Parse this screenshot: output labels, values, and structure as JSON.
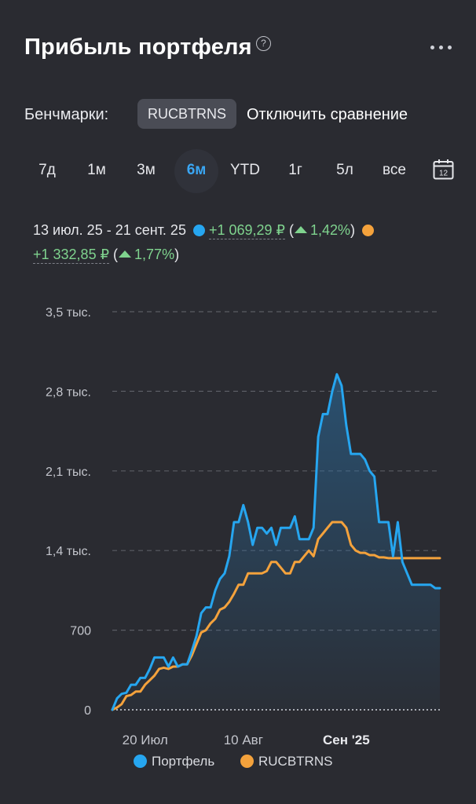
{
  "header": {
    "title": "Прибыль портфеля",
    "help": "?"
  },
  "benchmarks": {
    "label": "Бенчмарки:",
    "selected": "RUCBTRNS",
    "disable": "Отключить сравнение"
  },
  "ranges": [
    "7д",
    "1м",
    "3м",
    "6м",
    "YTD",
    "1г",
    "5л",
    "все"
  ],
  "active_range": "6м",
  "calendar": {
    "day": "12"
  },
  "stats": {
    "period": "13 июл. 25 - 21 сент. 25",
    "portfolio_value": "+1 069,29 ₽",
    "portfolio_pct": "1,42%",
    "bench_value": "+1 332,85 ₽",
    "bench_pct": "1,77%"
  },
  "colors": {
    "portfolio": "#26a6f0",
    "benchmark": "#f4a23c",
    "positive": "#7fd38e"
  },
  "chart_data": {
    "type": "line",
    "yticks": [
      "0",
      "700",
      "1,4 тыс.",
      "2,1 тыс.",
      "2,8 тыс.",
      "3,5 тыс."
    ],
    "ylim": [
      0,
      3500
    ],
    "x_start": "2025-07-13",
    "x_end": "2025-09-21",
    "xticks": [
      {
        "label": "20 Июл",
        "date": "2025-07-20",
        "bold": false
      },
      {
        "label": "10 Авг",
        "date": "2025-08-10",
        "bold": false
      },
      {
        "label": "Сен '25",
        "date": "2025-09-01",
        "bold": true
      }
    ],
    "series": [
      {
        "name": "Портфель",
        "x": [
          "2025-07-13",
          "2025-07-14",
          "2025-07-15",
          "2025-07-16",
          "2025-07-17",
          "2025-07-18",
          "2025-07-19",
          "2025-07-20",
          "2025-07-21",
          "2025-07-22",
          "2025-07-23",
          "2025-07-24",
          "2025-07-25",
          "2025-07-26",
          "2025-07-27",
          "2025-07-28",
          "2025-07-29",
          "2025-07-30",
          "2025-07-31",
          "2025-08-01",
          "2025-08-02",
          "2025-08-03",
          "2025-08-04",
          "2025-08-05",
          "2025-08-06",
          "2025-08-07",
          "2025-08-08",
          "2025-08-09",
          "2025-08-10",
          "2025-08-11",
          "2025-08-12",
          "2025-08-13",
          "2025-08-14",
          "2025-08-15",
          "2025-08-16",
          "2025-08-17",
          "2025-08-18",
          "2025-08-19",
          "2025-08-20",
          "2025-08-21",
          "2025-08-22",
          "2025-08-23",
          "2025-08-24",
          "2025-08-25",
          "2025-08-26",
          "2025-08-27",
          "2025-08-28",
          "2025-08-29",
          "2025-08-30",
          "2025-08-31",
          "2025-09-01",
          "2025-09-02",
          "2025-09-03",
          "2025-09-04",
          "2025-09-05",
          "2025-09-06",
          "2025-09-07",
          "2025-09-08",
          "2025-09-09",
          "2025-09-10",
          "2025-09-11",
          "2025-09-12",
          "2025-09-13",
          "2025-09-14",
          "2025-09-15",
          "2025-09-16",
          "2025-09-17",
          "2025-09-18",
          "2025-09-19",
          "2025-09-20",
          "2025-09-21"
        ],
        "values": [
          0,
          100,
          140,
          150,
          220,
          220,
          280,
          280,
          360,
          460,
          460,
          460,
          380,
          460,
          380,
          400,
          400,
          520,
          650,
          850,
          900,
          900,
          1050,
          1150,
          1200,
          1350,
          1650,
          1650,
          1800,
          1650,
          1450,
          1600,
          1600,
          1550,
          1600,
          1450,
          1600,
          1600,
          1600,
          1700,
          1500,
          1500,
          1500,
          1600,
          2400,
          2600,
          2600,
          2800,
          2950,
          2850,
          2500,
          2250,
          2250,
          2250,
          2200,
          2100,
          2050,
          1650,
          1650,
          1650,
          1350,
          1650,
          1300,
          1200,
          1100,
          1100,
          1100,
          1100,
          1100,
          1069,
          1069
        ]
      },
      {
        "name": "RUCBTRNS",
        "x": [
          "2025-07-13",
          "2025-07-14",
          "2025-07-15",
          "2025-07-16",
          "2025-07-17",
          "2025-07-18",
          "2025-07-19",
          "2025-07-20",
          "2025-07-21",
          "2025-07-22",
          "2025-07-23",
          "2025-07-24",
          "2025-07-25",
          "2025-07-26",
          "2025-07-27",
          "2025-07-28",
          "2025-07-29",
          "2025-07-30",
          "2025-07-31",
          "2025-08-01",
          "2025-08-02",
          "2025-08-03",
          "2025-08-04",
          "2025-08-05",
          "2025-08-06",
          "2025-08-07",
          "2025-08-08",
          "2025-08-09",
          "2025-08-10",
          "2025-08-11",
          "2025-08-12",
          "2025-08-13",
          "2025-08-14",
          "2025-08-15",
          "2025-08-16",
          "2025-08-17",
          "2025-08-18",
          "2025-08-19",
          "2025-08-20",
          "2025-08-21",
          "2025-08-22",
          "2025-08-23",
          "2025-08-24",
          "2025-08-25",
          "2025-08-26",
          "2025-08-27",
          "2025-08-28",
          "2025-08-29",
          "2025-08-30",
          "2025-08-31",
          "2025-09-01",
          "2025-09-02",
          "2025-09-03",
          "2025-09-04",
          "2025-09-05",
          "2025-09-06",
          "2025-09-07",
          "2025-09-08",
          "2025-09-09",
          "2025-09-10",
          "2025-09-11",
          "2025-09-12",
          "2025-09-13",
          "2025-09-14",
          "2025-09-15",
          "2025-09-16",
          "2025-09-17",
          "2025-09-18",
          "2025-09-19",
          "2025-09-20",
          "2025-09-21"
        ],
        "values": [
          0,
          20,
          50,
          120,
          130,
          160,
          160,
          220,
          260,
          300,
          360,
          370,
          360,
          380,
          380,
          400,
          400,
          480,
          580,
          680,
          700,
          760,
          800,
          880,
          900,
          950,
          1020,
          1100,
          1100,
          1200,
          1200,
          1200,
          1200,
          1220,
          1300,
          1300,
          1250,
          1200,
          1200,
          1300,
          1300,
          1350,
          1400,
          1350,
          1500,
          1550,
          1600,
          1650,
          1650,
          1650,
          1600,
          1450,
          1400,
          1380,
          1380,
          1360,
          1360,
          1340,
          1340,
          1333,
          1333,
          1333,
          1333,
          1333,
          1333,
          1333,
          1333,
          1333,
          1333,
          1333,
          1333
        ]
      }
    ]
  }
}
